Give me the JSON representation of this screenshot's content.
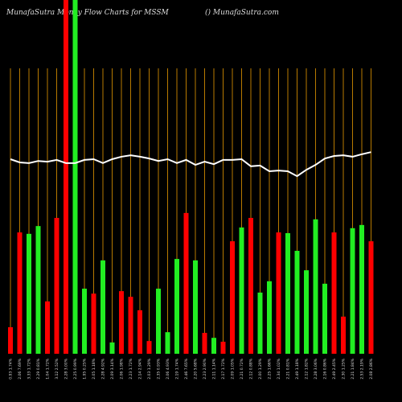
{
  "chart_data": {
    "type": "bar",
    "title": "MunafaSutra  Money Flow  Charts for MSSM",
    "subtitle": "() MunafaSutra.com",
    "ylim": [
      0,
      100
    ],
    "grid_color": "#b87a00",
    "line_color": "#ffffff",
    "categories": [
      "0.93 1.74%",
      "2.06 7.69%",
      "3.33 1.72%",
      "2.29 0.81%",
      "1.04 1.72%",
      "3.12 2.52%",
      "2.28 3.00%",
      "2.25 0.99%",
      "1.95 0.25%",
      "2.05 1.18%",
      "2.28 4.92%",
      "2.09 3.14%",
      "2.06 1.98%",
      "2.23 1.72%",
      "2.14 2.94%",
      "2.03 1.29%",
      "2.35 0.93%",
      "2.06 4.93%",
      "2.19 1.74%",
      "2.46 7.65%",
      "2.20 5.68%",
      "2.23 2.90%",
      "2.11 1.14%",
      "2.17 1.72%",
      "2.09 1.05%",
      "2.21 0.72%",
      "2.12 0.88%",
      "2.00 1.29%",
      "2.25 1.66%",
      "2.34 1.02%",
      "2.21 0.81%",
      "2.49 1.18%",
      "2.12 1.82%",
      "2.28 3.06%",
      "2.16 0.86%",
      "2.49 2.45%",
      "2.30 1.25%",
      "2.21 1.84%",
      "2.53 2.19%",
      "2.08 2.86%"
    ],
    "values": [
      7.5,
      34.3,
      33.9,
      36.1,
      14.8,
      38.4,
      100,
      100,
      18.4,
      17,
      26.4,
      3.2,
      17.7,
      16.1,
      12.3,
      3.6,
      18.4,
      6.1,
      26.8,
      39.8,
      26.4,
      5.9,
      4.5,
      3.4,
      31.8,
      35.7,
      38.4,
      17.3,
      20.5,
      34.3,
      34.1,
      29.1,
      23.6,
      38,
      19.8,
      34.3,
      10.5,
      35.5,
      36.4,
      31.8
    ],
    "colors": [
      "#ff0000",
      "#ff0000",
      "#22ee22",
      "#22ee22",
      "#ff0000",
      "#ff0000",
      "#ff0000",
      "#22ee22",
      "#22ee22",
      "#ff0000",
      "#22ee22",
      "#22ee22",
      "#ff0000",
      "#ff0000",
      "#ff0000",
      "#ff0000",
      "#22ee22",
      "#22ee22",
      "#22ee22",
      "#ff0000",
      "#22ee22",
      "#ff0000",
      "#22ee22",
      "#ff0000",
      "#ff0000",
      "#22ee22",
      "#ff0000",
      "#22ee22",
      "#22ee22",
      "#ff0000",
      "#22ee22",
      "#22ee22",
      "#22ee22",
      "#22ee22",
      "#22ee22",
      "#ff0000",
      "#ff0000",
      "#22ee22",
      "#22ee22",
      "#ff0000"
    ],
    "line_values": [
      55,
      54.1,
      53.9,
      54.5,
      54.3,
      54.8,
      53.9,
      53.9,
      54.8,
      55,
      53.9,
      55,
      55.7,
      56.1,
      55.7,
      55.2,
      54.5,
      55,
      53.9,
      54.8,
      53.4,
      54.3,
      53.6,
      54.8,
      54.8,
      55,
      53,
      53.2,
      51.6,
      51.8,
      51.6,
      50.2,
      52,
      53.4,
      55.2,
      55.9,
      56.1,
      55.7,
      56.4,
      57
    ]
  }
}
